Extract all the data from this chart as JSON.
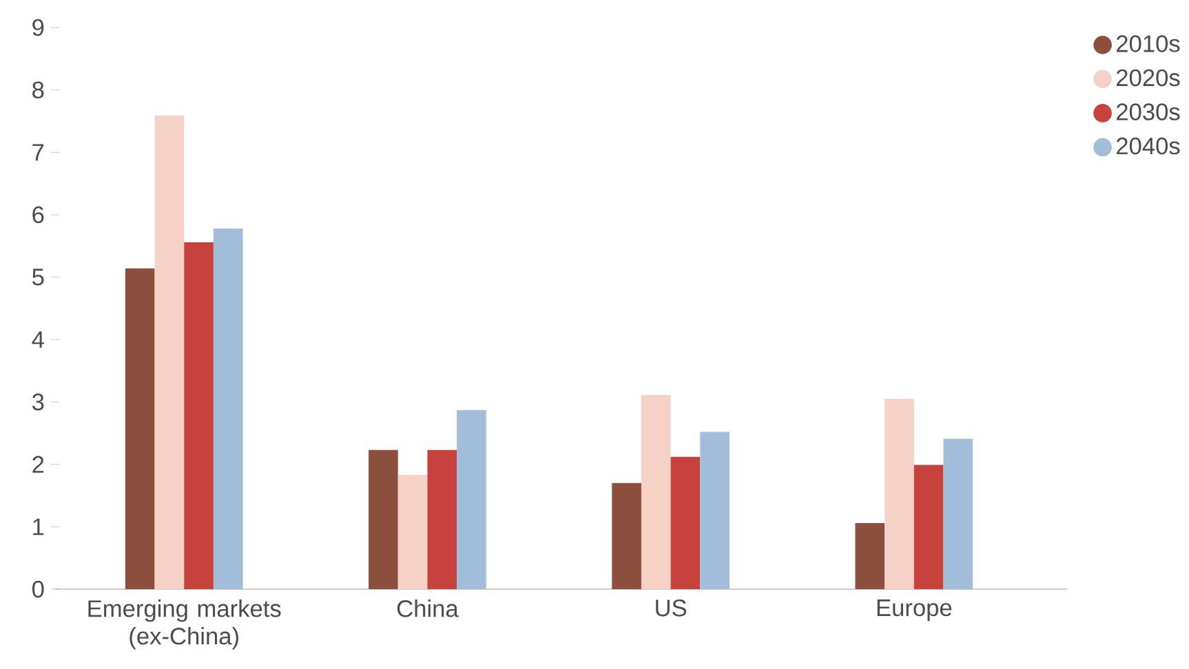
{
  "chart_data": {
    "type": "bar",
    "categories": [
      "Emerging markets (ex-China)",
      "China",
      "US",
      "Europe"
    ],
    "series": [
      {
        "name": "2010s",
        "color": "#8c4f3e",
        "values": [
          5.14,
          2.23,
          1.7,
          1.06
        ]
      },
      {
        "name": "2020s",
        "color": "#f6d2c6",
        "values": [
          7.59,
          1.83,
          3.11,
          3.05
        ]
      },
      {
        "name": "2030s",
        "color": "#c8423d",
        "values": [
          5.56,
          2.23,
          2.12,
          1.99
        ]
      },
      {
        "name": "2040s",
        "color": "#a2bedb",
        "values": [
          5.78,
          2.87,
          2.52,
          2.41
        ]
      }
    ],
    "ylim": [
      0,
      9
    ],
    "yticks": [
      0,
      1,
      2,
      3,
      4,
      5,
      6,
      7,
      8,
      9
    ],
    "legend": "top right"
  }
}
